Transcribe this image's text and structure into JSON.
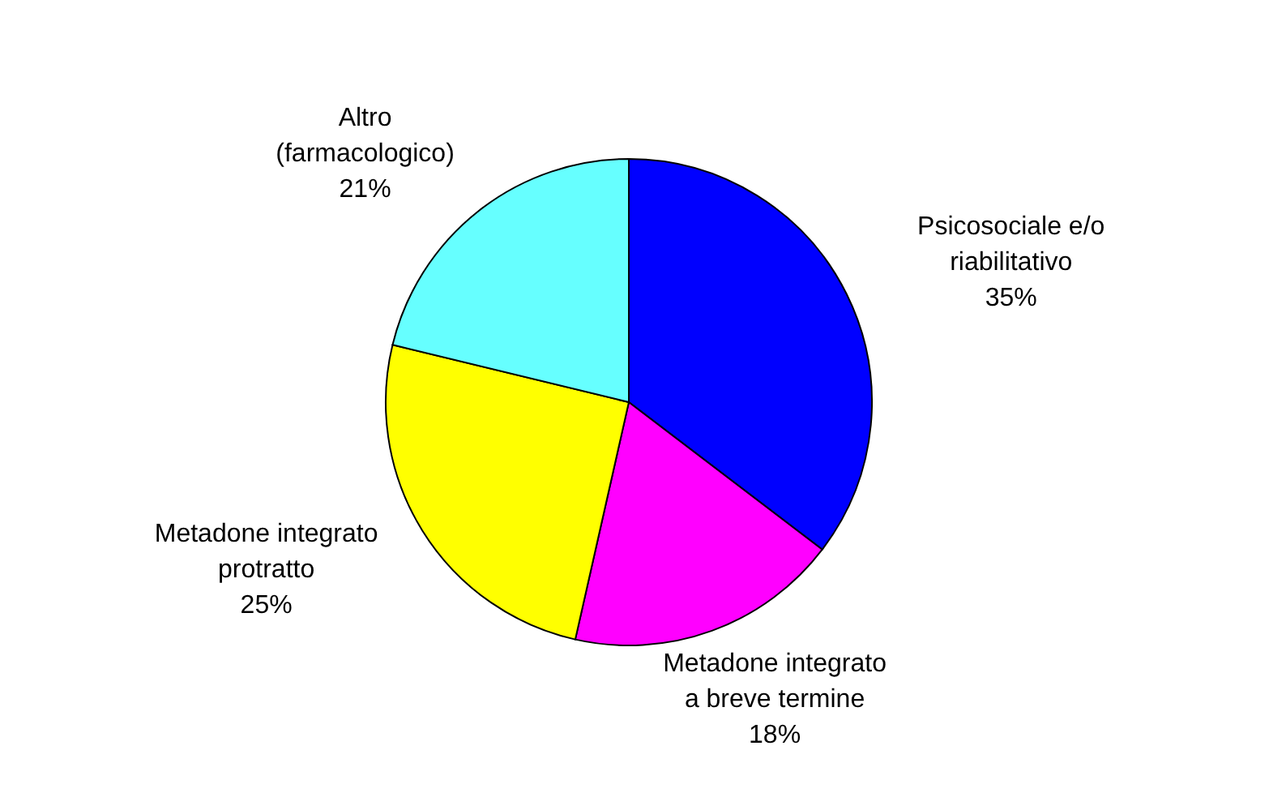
{
  "chart_data": {
    "type": "pie",
    "categories": [
      "Psicosociale e/o riabilitativo",
      "Metadone integrato a breve termine",
      "Metadone integrato protratto",
      "Altro (farmacologico)"
    ],
    "values": [
      35,
      18,
      25,
      21
    ],
    "value_labels": [
      "35%",
      "18%",
      "25%",
      "21%"
    ],
    "colors": [
      "#0000ff",
      "#ff00ff",
      "#ffff00",
      "#66ffff"
    ],
    "legend": false
  }
}
